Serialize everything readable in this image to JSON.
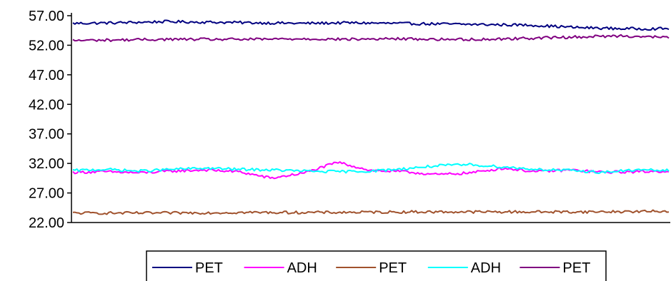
{
  "chart_data": {
    "type": "line",
    "title": "",
    "xlabel": "",
    "ylabel": "",
    "ylim": [
      22.0,
      57.0
    ],
    "yticks": [
      "57.00",
      "52.00",
      "47.00",
      "42.00",
      "37.00",
      "32.00",
      "27.00",
      "22.00"
    ],
    "grid": false,
    "legend_position": "bottom",
    "n_points": 300,
    "series": [
      {
        "name": "PET",
        "color": "#000080",
        "anchors": [
          55.7,
          55.8,
          56.0,
          55.9,
          55.8,
          55.7,
          55.8,
          55.7,
          55.6,
          55.5,
          55.4,
          55.0,
          54.8,
          54.8
        ]
      },
      {
        "name": "ADH",
        "color": "#ff00ff",
        "anchors": [
          30.5,
          30.6,
          30.4,
          30.7,
          30.9,
          30.6,
          29.5,
          30.4,
          32.2,
          30.8,
          30.6,
          30.1,
          30.4,
          31.2,
          30.6,
          30.9,
          30.5,
          30.6,
          30.7
        ]
      },
      {
        "name": "PET",
        "color": "#a0522d",
        "anchors": [
          23.6,
          23.6,
          23.7,
          23.7,
          23.8,
          23.8,
          23.8,
          23.9
        ]
      },
      {
        "name": "ADH",
        "color": "#00ffff",
        "anchors": [
          30.8,
          31.0,
          30.7,
          31.0,
          31.2,
          31.0,
          30.9,
          30.7,
          30.6,
          30.7,
          31.1,
          31.6,
          31.8,
          31.4,
          31.0,
          30.8,
          30.5,
          30.9,
          30.8
        ]
      },
      {
        "name": "PET",
        "color": "#800080",
        "anchors": [
          52.8,
          52.9,
          53.0,
          53.0,
          53.0,
          53.1,
          53.0,
          53.1,
          53.0,
          53.0,
          53.2,
          53.4,
          53.6,
          53.3
        ]
      }
    ]
  }
}
